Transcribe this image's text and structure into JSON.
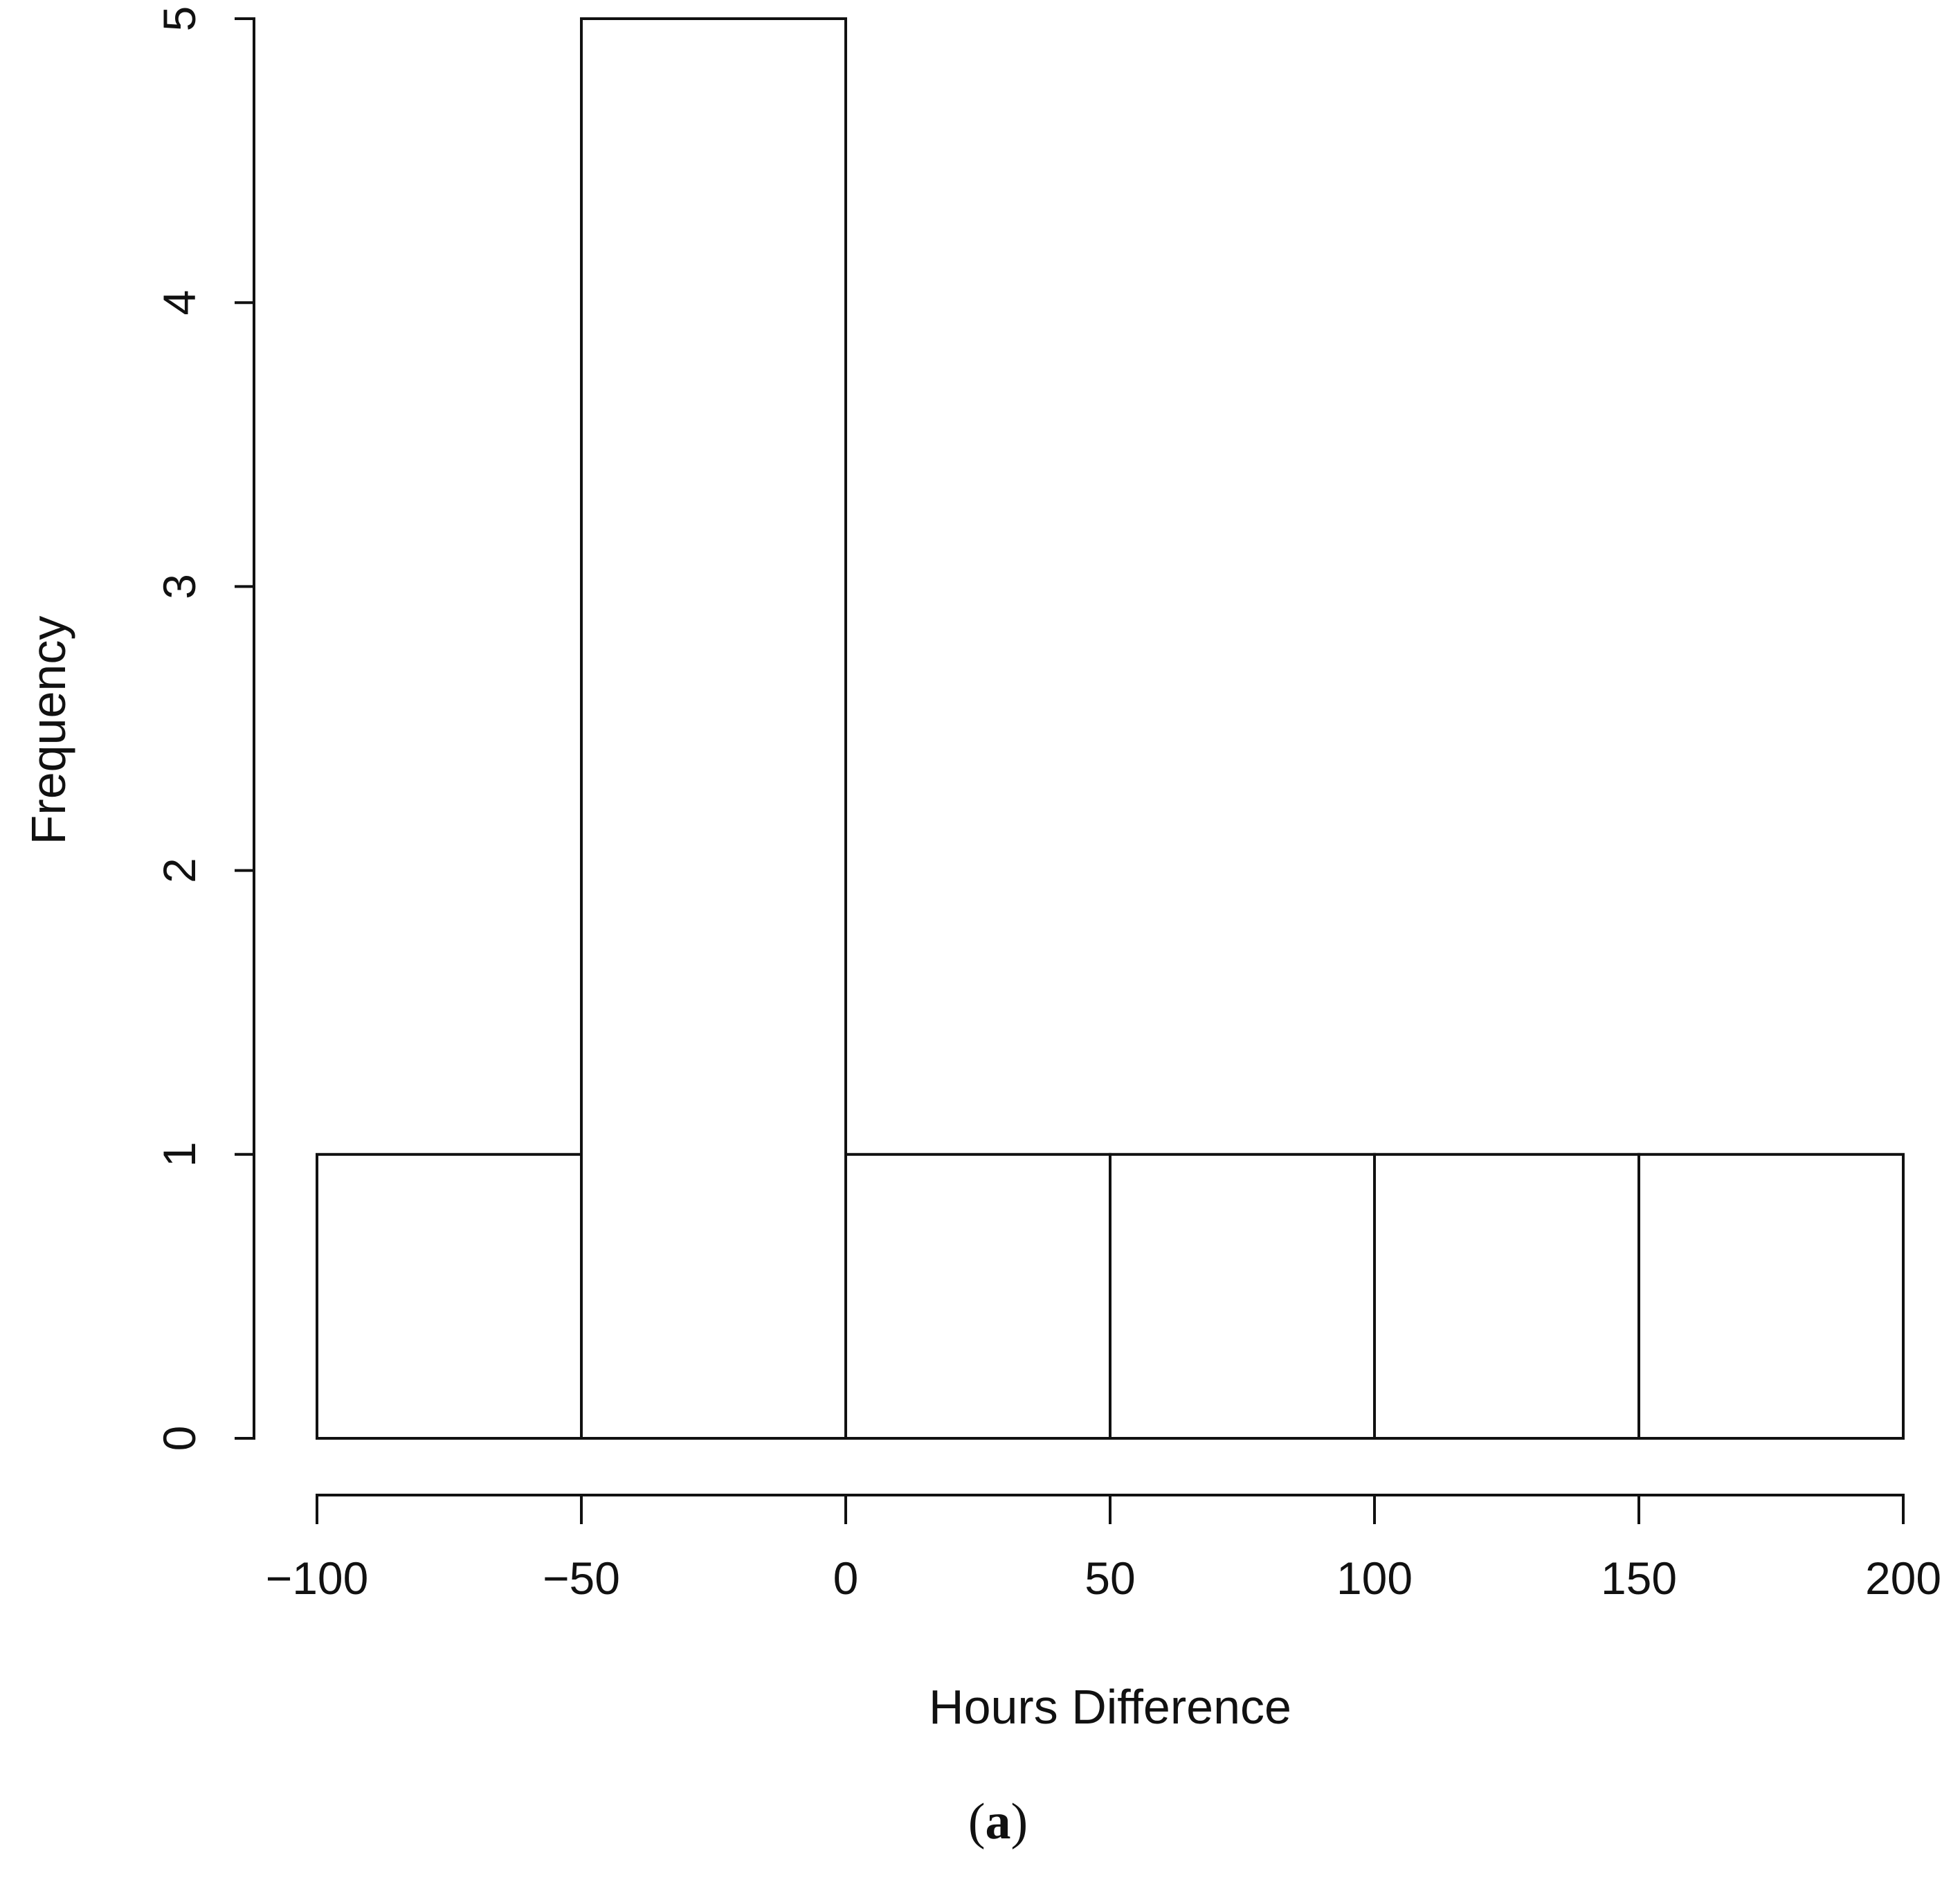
{
  "chart_data": {
    "type": "bar",
    "bins": [
      {
        "from": -100,
        "to": -50,
        "count": 1
      },
      {
        "from": -50,
        "to": 0,
        "count": 5
      },
      {
        "from": 0,
        "to": 50,
        "count": 1
      },
      {
        "from": 50,
        "to": 100,
        "count": 1
      },
      {
        "from": 100,
        "to": 150,
        "count": 1
      },
      {
        "from": 150,
        "to": 200,
        "count": 1
      }
    ],
    "xlabel": "Hours Difference",
    "ylabel": "Frequency",
    "xlim": [
      -100,
      200
    ],
    "ylim": [
      0,
      5
    ],
    "x_ticks": [
      -100,
      -50,
      0,
      50,
      100,
      150,
      200
    ],
    "x_tick_labels": [
      "−100",
      "−50",
      "0",
      "50",
      "100",
      "150",
      "200"
    ],
    "y_ticks": [
      0,
      1,
      2,
      3,
      4,
      5
    ],
    "y_tick_labels": [
      "0",
      "1",
      "2",
      "3",
      "4",
      "5"
    ],
    "grid": false,
    "legend": "none"
  },
  "caption": {
    "open": "(",
    "letter": "a",
    "close": ")"
  }
}
